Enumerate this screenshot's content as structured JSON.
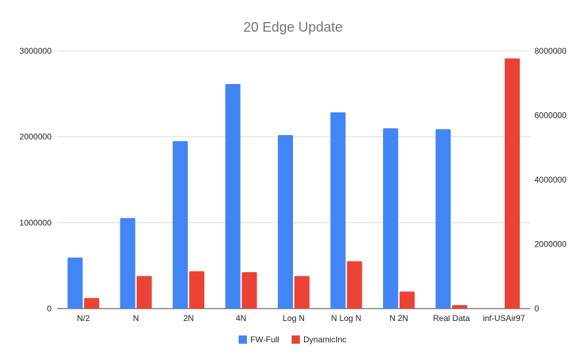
{
  "chart_data": {
    "type": "bar",
    "title": "20 Edge Update",
    "categories": [
      "N/2",
      "N",
      "2N",
      "4N",
      "Log N",
      "N Log N",
      "N 2N",
      "Real Data",
      "inf-USAir97"
    ],
    "series": [
      {
        "name": "FW-Full",
        "axis": "left",
        "color": "#4285f4",
        "values": [
          595000,
          1055000,
          1950000,
          2615000,
          2020000,
          2285000,
          2100000,
          2090000,
          null
        ]
      },
      {
        "name": "DynamicInc",
        "axis": "right",
        "color": "#ea4335",
        "values": [
          330000,
          1010000,
          1160000,
          1130000,
          1010000,
          1470000,
          530000,
          110000,
          7770000
        ]
      }
    ],
    "left_axis": {
      "min": 0,
      "max": 3000000,
      "ticks": [
        "0",
        "1000000",
        "2000000",
        "3000000"
      ]
    },
    "right_axis": {
      "min": 0,
      "max": 8000000,
      "ticks": [
        "0",
        "2000000",
        "4000000",
        "6000000",
        "8000000"
      ]
    },
    "xlabel": "",
    "ylabel": "",
    "grid": true,
    "legend_position": "bottom"
  }
}
